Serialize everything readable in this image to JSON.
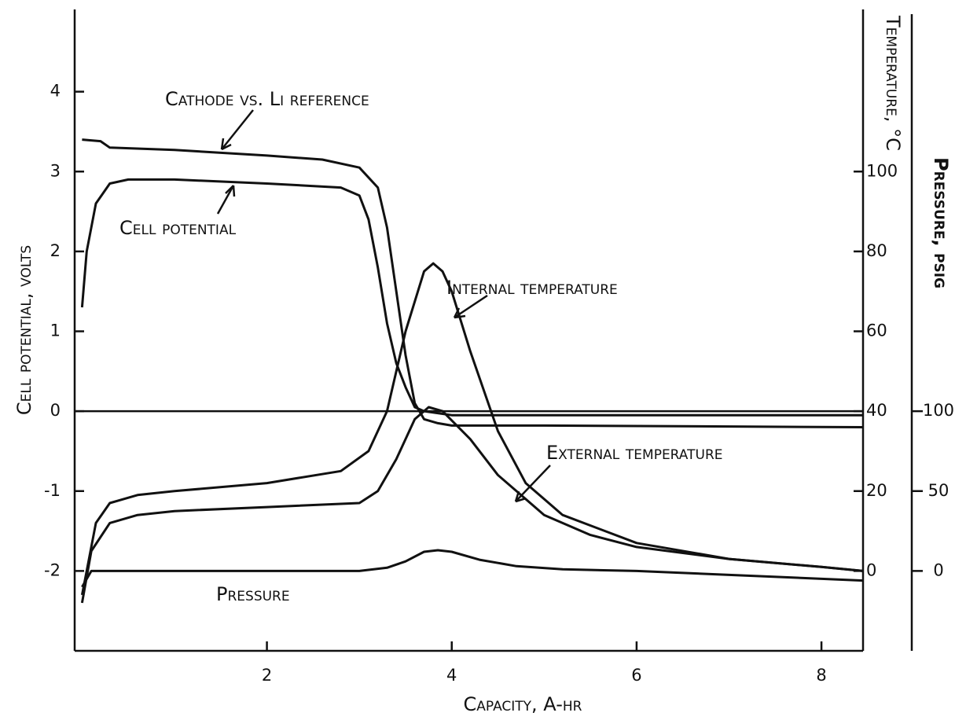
{
  "chart_data": {
    "type": "line",
    "xlabel": "Capacity, A-hr",
    "ylabel": "Cell potential, volts",
    "y2label": "Temperature, °C",
    "y3label": "Pressure, psig",
    "xlim": [
      -0.08,
      8.45
    ],
    "xticks": [
      2,
      4,
      6,
      8
    ],
    "ylim": [
      -3,
      5
    ],
    "yticks": [
      -2,
      -1,
      0,
      1,
      2,
      3,
      4
    ],
    "y2lim": [
      -20,
      140
    ],
    "y2ticks": [
      0,
      20,
      40,
      60,
      80,
      100
    ],
    "y3lim": [
      -50,
      350
    ],
    "y3ticks": [
      0,
      50,
      100
    ],
    "color": "#111111",
    "series": [
      {
        "name": "Cathode vs. Li reference",
        "axis": "y",
        "x": [
          0,
          0.2,
          0.3,
          1,
          2,
          2.6,
          3.0,
          3.2,
          3.3,
          3.4,
          3.5,
          3.6,
          3.7,
          3.85,
          4,
          5,
          8.45
        ],
        "values": [
          3.4,
          3.38,
          3.3,
          3.27,
          3.2,
          3.15,
          3.05,
          2.8,
          2.3,
          1.5,
          0.7,
          0.1,
          -0.1,
          -0.15,
          -0.18,
          -0.18,
          -0.2
        ]
      },
      {
        "name": "Cell potential",
        "axis": "y",
        "x": [
          0,
          0.05,
          0.15,
          0.3,
          0.5,
          1,
          2,
          2.8,
          3.0,
          3.1,
          3.2,
          3.3,
          3.4,
          3.5,
          3.6,
          3.7,
          4,
          8.45
        ],
        "values": [
          1.3,
          2,
          2.6,
          2.85,
          2.9,
          2.9,
          2.85,
          2.8,
          2.7,
          2.4,
          1.8,
          1.1,
          0.6,
          0.3,
          0.05,
          0,
          -0.05,
          -0.05
        ]
      },
      {
        "name": "Internal temperature",
        "axis": "y2",
        "x": [
          0,
          0.05,
          0.15,
          0.3,
          0.6,
          1,
          2,
          2.8,
          3.1,
          3.3,
          3.5,
          3.7,
          3.8,
          3.9,
          4.0,
          4.2,
          4.5,
          4.8,
          5.2,
          6,
          7,
          8,
          8.45
        ],
        "values": [
          -6,
          0,
          12,
          17,
          19,
          20,
          22,
          25,
          30,
          40,
          60,
          75,
          77,
          75,
          70,
          55,
          35,
          22,
          14,
          7,
          3,
          1,
          0
        ]
      },
      {
        "name": "External temperature",
        "axis": "y2",
        "x": [
          0,
          0.1,
          0.3,
          0.6,
          1,
          2,
          3,
          3.2,
          3.4,
          3.6,
          3.75,
          3.9,
          4.2,
          4.5,
          5,
          5.5,
          6,
          7,
          8,
          8.45
        ],
        "values": [
          -8,
          5,
          12,
          14,
          15,
          16,
          17,
          20,
          28,
          38,
          41,
          40,
          33,
          24,
          14,
          9,
          6,
          3,
          1,
          0
        ]
      },
      {
        "name": "Pressure",
        "axis": "y3",
        "x": [
          0,
          0.1,
          1,
          2,
          3.0,
          3.3,
          3.5,
          3.7,
          3.85,
          4,
          4.3,
          4.7,
          5.2,
          6,
          8.45
        ],
        "values": [
          -10,
          0,
          0,
          0,
          0,
          2,
          6,
          12,
          13,
          12,
          7,
          3,
          1,
          0,
          -6
        ]
      }
    ]
  }
}
